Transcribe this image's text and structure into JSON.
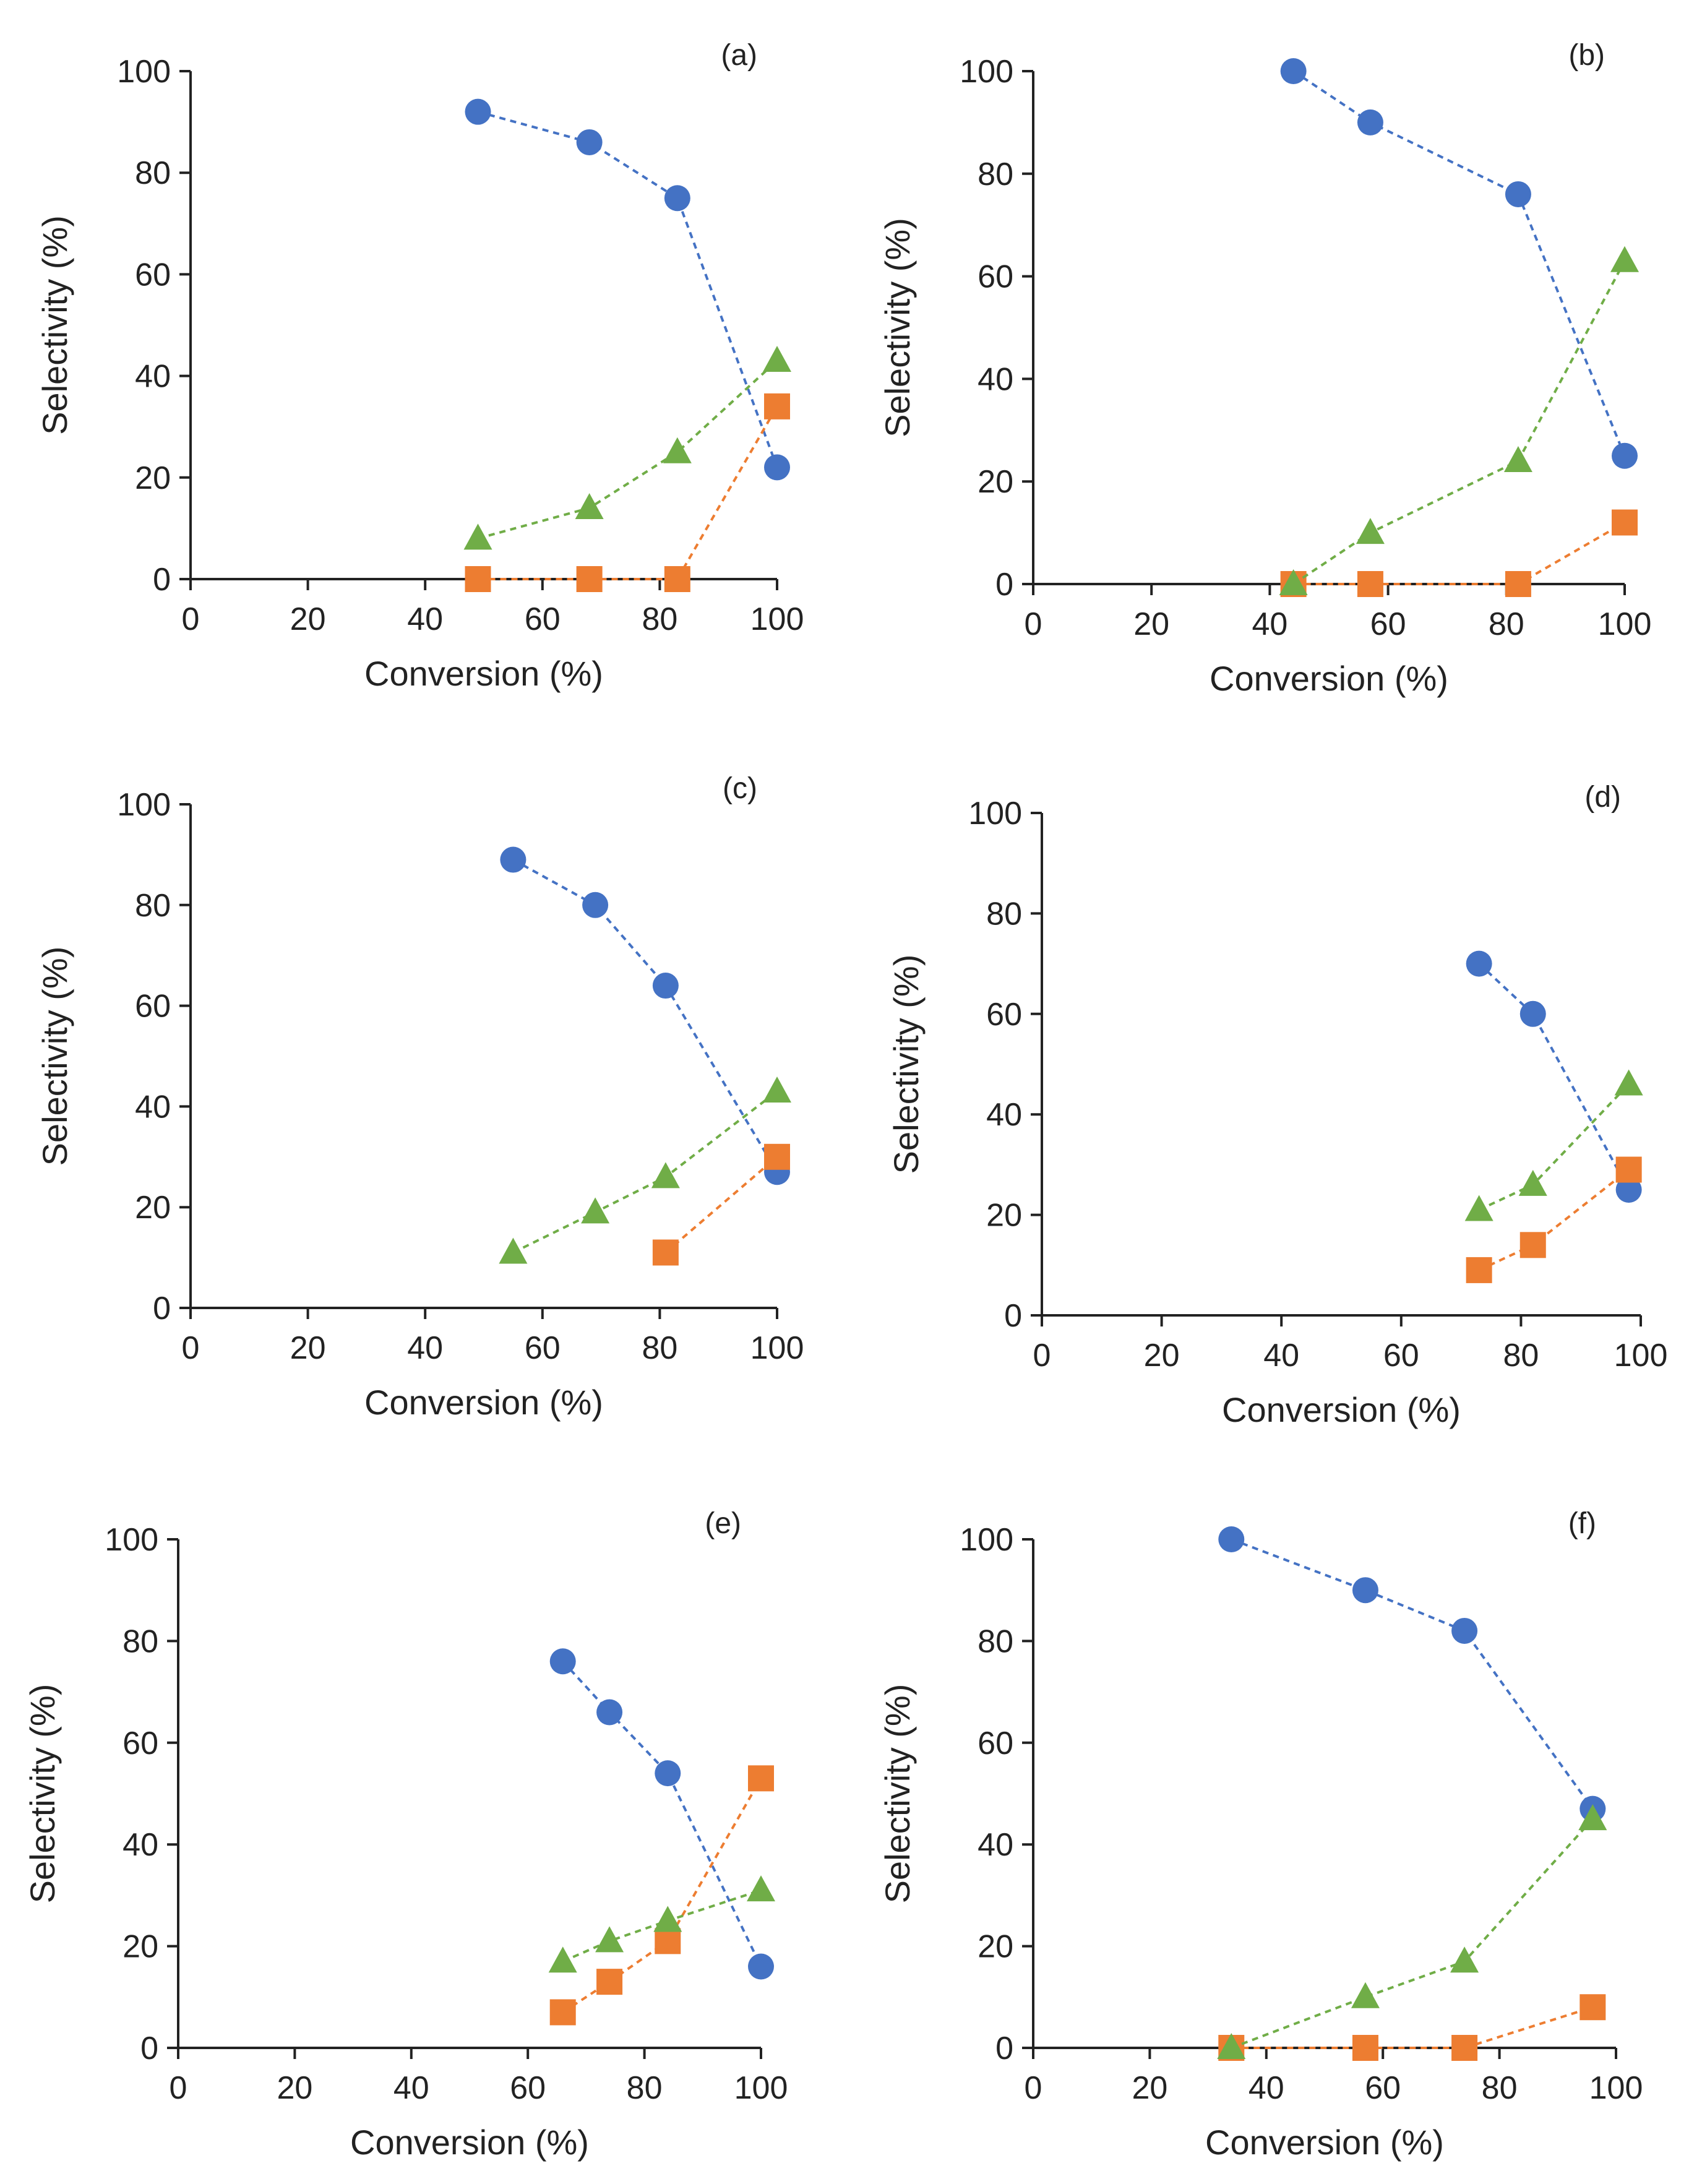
{
  "colors": {
    "series1": "#4472C4",
    "series2": "#ED7D31",
    "series3": "#70AD47",
    "axis": "#222222"
  },
  "chart_data": [
    {
      "type": "scatter",
      "panel_label": "(a)",
      "xlabel": "Conversion (%)",
      "ylabel": "Selectivity (%)",
      "xlim": [
        0,
        100
      ],
      "ylim": [
        0,
        100
      ],
      "xticks": [
        "0",
        "20",
        "40",
        "60",
        "80",
        "100"
      ],
      "yticks": [
        "0",
        "20",
        "40",
        "60",
        "80",
        "100"
      ],
      "series": [
        {
          "marker": "circle",
          "x": [
            49,
            68,
            83,
            100
          ],
          "y": [
            92,
            86,
            75,
            22
          ]
        },
        {
          "marker": "square",
          "x": [
            49,
            68,
            83,
            100
          ],
          "y": [
            0,
            0,
            0,
            34
          ]
        },
        {
          "marker": "triangle",
          "x": [
            49,
            68,
            83,
            100
          ],
          "y": [
            8,
            14,
            25,
            43
          ]
        }
      ]
    },
    {
      "type": "scatter",
      "panel_label": "(b)",
      "xlabel": "Conversion (%)",
      "ylabel": "Selectivity (%)",
      "xlim": [
        0,
        100
      ],
      "ylim": [
        0,
        100
      ],
      "xticks": [
        "0",
        "20",
        "40",
        "60",
        "80",
        "100"
      ],
      "yticks": [
        "0",
        "20",
        "40",
        "60",
        "80",
        "100"
      ],
      "series": [
        {
          "marker": "circle",
          "x": [
            44,
            57,
            82,
            100
          ],
          "y": [
            100,
            90,
            76,
            25
          ]
        },
        {
          "marker": "square",
          "x": [
            44,
            57,
            82,
            100
          ],
          "y": [
            0,
            0,
            0,
            12
          ]
        },
        {
          "marker": "triangle",
          "x": [
            44,
            57,
            82,
            100
          ],
          "y": [
            0,
            10,
            24,
            63
          ]
        }
      ]
    },
    {
      "type": "scatter",
      "panel_label": "(c)",
      "xlabel": "Conversion (%)",
      "ylabel": "Selectivity (%)",
      "xlim": [
        0,
        100
      ],
      "ylim": [
        0,
        100
      ],
      "xticks": [
        "0",
        "20",
        "40",
        "60",
        "80",
        "100"
      ],
      "yticks": [
        "0",
        "20",
        "40",
        "60",
        "80",
        "100"
      ],
      "series": [
        {
          "marker": "circle",
          "x": [
            55,
            69,
            81,
            100
          ],
          "y": [
            89,
            80,
            64,
            27
          ]
        },
        {
          "marker": "square",
          "x": [
            81,
            100
          ],
          "y": [
            11,
            30
          ]
        },
        {
          "marker": "triangle",
          "x": [
            55,
            69,
            81,
            100
          ],
          "y": [
            11,
            19,
            26,
            43
          ]
        }
      ]
    },
    {
      "type": "scatter",
      "panel_label": "(d)",
      "xlabel": "Conversion (%)",
      "ylabel": "Selectivity (%)",
      "xlim": [
        0,
        100
      ],
      "ylim": [
        0,
        100
      ],
      "xticks": [
        "0",
        "20",
        "40",
        "60",
        "80",
        "100"
      ],
      "yticks": [
        "0",
        "20",
        "40",
        "60",
        "80",
        "100"
      ],
      "series": [
        {
          "marker": "circle",
          "x": [
            73,
            82,
            98
          ],
          "y": [
            70,
            60,
            25
          ]
        },
        {
          "marker": "square",
          "x": [
            73,
            82,
            98
          ],
          "y": [
            9,
            14,
            29
          ]
        },
        {
          "marker": "triangle",
          "x": [
            73,
            82,
            98
          ],
          "y": [
            21,
            26,
            46
          ]
        }
      ]
    },
    {
      "type": "scatter",
      "panel_label": "(e)",
      "xlabel": "Conversion (%)",
      "ylabel": "Selectivity (%)",
      "xlim": [
        0,
        100
      ],
      "ylim": [
        0,
        100
      ],
      "xticks": [
        "0",
        "20",
        "40",
        "60",
        "80",
        "100"
      ],
      "yticks": [
        "0",
        "20",
        "40",
        "60",
        "80",
        "100"
      ],
      "series": [
        {
          "marker": "circle",
          "x": [
            66,
            74,
            84,
            100
          ],
          "y": [
            76,
            66,
            54,
            16
          ]
        },
        {
          "marker": "square",
          "x": [
            66,
            74,
            84,
            100
          ],
          "y": [
            7,
            13,
            21,
            53
          ]
        },
        {
          "marker": "triangle",
          "x": [
            66,
            74,
            84,
            100
          ],
          "y": [
            17,
            21,
            25,
            31
          ]
        }
      ]
    },
    {
      "type": "scatter",
      "panel_label": "(f)",
      "xlabel": "Conversion (%)",
      "ylabel": "Selectivity (%)",
      "xlim": [
        0,
        100
      ],
      "ylim": [
        0,
        100
      ],
      "xticks": [
        "0",
        "20",
        "40",
        "60",
        "80",
        "100"
      ],
      "yticks": [
        "0",
        "20",
        "40",
        "60",
        "80",
        "100"
      ],
      "series": [
        {
          "marker": "circle",
          "x": [
            34,
            57,
            74,
            96
          ],
          "y": [
            100,
            90,
            82,
            47
          ]
        },
        {
          "marker": "square",
          "x": [
            34,
            57,
            74,
            96
          ],
          "y": [
            0,
            0,
            0,
            8
          ]
        },
        {
          "marker": "triangle",
          "x": [
            34,
            57,
            74,
            96
          ],
          "y": [
            0,
            10,
            17,
            45
          ]
        }
      ]
    }
  ]
}
